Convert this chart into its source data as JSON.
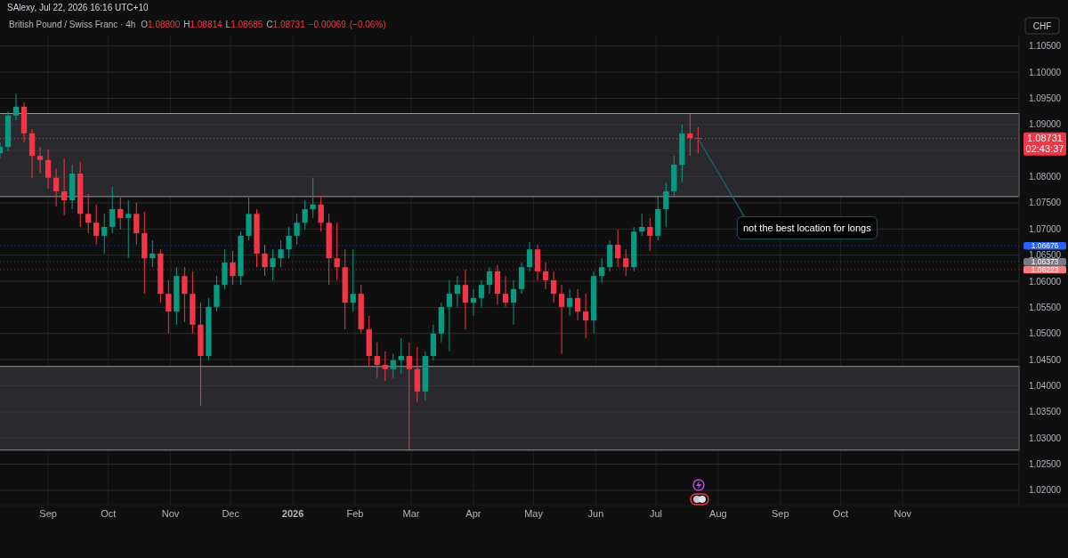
{
  "chart_data": {
    "type": "candlestick",
    "title": "British Pound / Swiss Franc · 4h",
    "subtitle": "O1.08800 H1.08814 L1.08685 C1.08731 −0.00069 (−0.06%)",
    "ylabel": "CHF",
    "annotations": [
      "SAlexy, Jul 22, 2026 16:16 UTC+10",
      "02:43:37",
      {
        "text": "not the best location for longs",
        "x": "2026-07-22",
        "y": 1.08731
      }
    ],
    "x": [
      "2025-08-08",
      "2025-08-12",
      "2025-08-16",
      "2025-08-20",
      "2025-08-24",
      "2025-08-28",
      "2025-09-01",
      "2025-09-05",
      "2025-09-09",
      "2025-09-13",
      "2025-09-17",
      "2025-09-21",
      "2025-09-25",
      "2025-09-29",
      "2025-10-03",
      "2025-10-07",
      "2025-10-11",
      "2025-10-15",
      "2025-10-19",
      "2025-10-23",
      "2025-10-27",
      "2025-10-31",
      "2025-11-04",
      "2025-11-08",
      "2025-11-12",
      "2025-11-16",
      "2025-11-20",
      "2025-11-24",
      "2025-11-28",
      "2025-12-02",
      "2025-12-06",
      "2025-12-10",
      "2025-12-14",
      "2025-12-18",
      "2025-12-22",
      "2025-12-26",
      "2025-12-30",
      "2026-01-03",
      "2026-01-07",
      "2026-01-11",
      "2026-01-15",
      "2026-01-19",
      "2026-01-23",
      "2026-01-27",
      "2026-01-31",
      "2026-02-04",
      "2026-02-08",
      "2026-02-12",
      "2026-02-16",
      "2026-02-20",
      "2026-02-24",
      "2026-02-28",
      "2026-03-04",
      "2026-03-08",
      "2026-03-12",
      "2026-03-16",
      "2026-03-20",
      "2026-03-24",
      "2026-03-28",
      "2026-04-01",
      "2026-04-05",
      "2026-04-09",
      "2026-04-13",
      "2026-04-17",
      "2026-04-21",
      "2026-04-25",
      "2026-04-29",
      "2026-05-03",
      "2026-05-07",
      "2026-05-11",
      "2026-05-15",
      "2026-05-19",
      "2026-05-23",
      "2026-05-27",
      "2026-05-31",
      "2026-06-04",
      "2026-06-08",
      "2026-06-12",
      "2026-06-16",
      "2026-06-20",
      "2026-06-24",
      "2026-06-28",
      "2026-07-02",
      "2026-07-06",
      "2026-07-10",
      "2026-07-14",
      "2026-07-18",
      "2026-07-22"
    ],
    "ohlc": [
      [
        1.0845,
        1.0866,
        1.0835,
        1.0857
      ],
      [
        1.0857,
        1.0925,
        1.0849,
        1.0917
      ],
      [
        1.0917,
        1.0959,
        1.0908,
        1.0934
      ],
      [
        1.0934,
        1.0942,
        1.0866,
        1.0883
      ],
      [
        1.0883,
        1.0891,
        1.0798,
        1.084
      ],
      [
        1.084,
        1.0857,
        1.0806,
        1.0832
      ],
      [
        1.0832,
        1.0852,
        1.0777,
        1.0798
      ],
      [
        1.0798,
        1.0815,
        1.0743,
        1.0772
      ],
      [
        1.0772,
        1.0835,
        1.0726,
        1.0755
      ],
      [
        1.0755,
        1.0823,
        1.0738,
        1.0806
      ],
      [
        1.0806,
        1.0828,
        1.0704,
        1.0729
      ],
      [
        1.0729,
        1.0767,
        1.0692,
        1.0712
      ],
      [
        1.0712,
        1.0747,
        1.067,
        1.0687
      ],
      [
        1.0687,
        1.0729,
        1.0653,
        1.0704
      ],
      [
        1.0704,
        1.0781,
        1.0692,
        1.0738
      ],
      [
        1.0738,
        1.076,
        1.0699,
        1.0721
      ],
      [
        1.0721,
        1.0755,
        1.0644,
        1.0729
      ],
      [
        1.0729,
        1.075,
        1.067,
        1.0692
      ],
      [
        1.0692,
        1.0733,
        1.0576,
        1.0644
      ],
      [
        1.0644,
        1.0678,
        1.0627,
        1.0653
      ],
      [
        1.0653,
        1.0661,
        1.0559,
        1.0576
      ],
      [
        1.0576,
        1.0602,
        1.05,
        1.0542
      ],
      [
        1.0542,
        1.0627,
        1.0517,
        1.061
      ],
      [
        1.061,
        1.0627,
        1.0522,
        1.0576
      ],
      [
        1.0576,
        1.0619,
        1.05,
        1.0517
      ],
      [
        1.0517,
        1.0559,
        1.0362,
        1.0457
      ],
      [
        1.0457,
        1.0568,
        1.0449,
        1.0551
      ],
      [
        1.0551,
        1.061,
        1.0542,
        1.0593
      ],
      [
        1.0593,
        1.0661,
        1.0585,
        1.0636
      ],
      [
        1.0636,
        1.0658,
        1.0593,
        1.061
      ],
      [
        1.061,
        1.0695,
        1.0593,
        1.0687
      ],
      [
        1.0687,
        1.076,
        1.0678,
        1.0729
      ],
      [
        1.0729,
        1.0738,
        1.0627,
        1.0653
      ],
      [
        1.0653,
        1.067,
        1.061,
        1.0627
      ],
      [
        1.0627,
        1.0661,
        1.0602,
        1.0644
      ],
      [
        1.0644,
        1.0678,
        1.0627,
        1.0661
      ],
      [
        1.0661,
        1.0704,
        1.0644,
        1.0687
      ],
      [
        1.0687,
        1.0729,
        1.067,
        1.0712
      ],
      [
        1.0712,
        1.0755,
        1.0699,
        1.0738
      ],
      [
        1.0738,
        1.0798,
        1.0721,
        1.0747
      ],
      [
        1.0747,
        1.0764,
        1.0695,
        1.0712
      ],
      [
        1.0712,
        1.0729,
        1.0593,
        1.0644
      ],
      [
        1.0644,
        1.0712,
        1.0602,
        1.0627
      ],
      [
        1.0627,
        1.0661,
        1.0508,
        1.0559
      ],
      [
        1.0559,
        1.0661,
        1.0542,
        1.0576
      ],
      [
        1.0576,
        1.0593,
        1.05,
        1.0508
      ],
      [
        1.0508,
        1.0534,
        1.0437,
        1.0457
      ],
      [
        1.0457,
        1.0483,
        1.0415,
        1.044
      ],
      [
        1.044,
        1.0466,
        1.0409,
        1.0432
      ],
      [
        1.0432,
        1.0461,
        1.0415,
        1.0449
      ],
      [
        1.0449,
        1.0491,
        1.0423,
        1.0457
      ],
      [
        1.0457,
        1.0483,
        1.0277,
        1.0432
      ],
      [
        1.0432,
        1.0474,
        1.0369,
        1.0389
      ],
      [
        1.0389,
        1.0466,
        1.0372,
        1.0457
      ],
      [
        1.0457,
        1.0517,
        1.0449,
        1.05
      ],
      [
        1.05,
        1.0559,
        1.0483,
        1.0551
      ],
      [
        1.0551,
        1.0602,
        1.0466,
        1.0576
      ],
      [
        1.0576,
        1.061,
        1.0551,
        1.0593
      ],
      [
        1.0593,
        1.0622,
        1.0508,
        1.0559
      ],
      [
        1.0559,
        1.0585,
        1.0534,
        1.0568
      ],
      [
        1.0568,
        1.0602,
        1.0551,
        1.0593
      ],
      [
        1.0593,
        1.0627,
        1.0576,
        1.0619
      ],
      [
        1.0619,
        1.0631,
        1.0556,
        1.0576
      ],
      [
        1.0576,
        1.061,
        1.0551,
        1.0559
      ],
      [
        1.0559,
        1.0602,
        1.0517,
        1.0585
      ],
      [
        1.0585,
        1.0636,
        1.0576,
        1.0627
      ],
      [
        1.0627,
        1.0675,
        1.0619,
        1.0661
      ],
      [
        1.0661,
        1.067,
        1.0602,
        1.0619
      ],
      [
        1.0619,
        1.0636,
        1.0585,
        1.0602
      ],
      [
        1.0602,
        1.0619,
        1.0559,
        1.0576
      ],
      [
        1.0576,
        1.0593,
        1.0461,
        1.0551
      ],
      [
        1.0551,
        1.0585,
        1.0534,
        1.0568
      ],
      [
        1.0568,
        1.0585,
        1.0525,
        1.0542
      ],
      [
        1.0542,
        1.0576,
        1.0491,
        1.0525
      ],
      [
        1.0525,
        1.0619,
        1.05,
        1.061
      ],
      [
        1.061,
        1.0644,
        1.0597,
        1.0627
      ],
      [
        1.0627,
        1.0678,
        1.0619,
        1.067
      ],
      [
        1.067,
        1.0699,
        1.0627,
        1.0644
      ],
      [
        1.0644,
        1.0661,
        1.061,
        1.0627
      ],
      [
        1.0627,
        1.0704,
        1.0619,
        1.0695
      ],
      [
        1.0695,
        1.0729,
        1.0687,
        1.0704
      ],
      [
        1.0704,
        1.0721,
        1.0658,
        1.0687
      ],
      [
        1.0687,
        1.0764,
        1.0678,
        1.0738
      ],
      [
        1.0738,
        1.0789,
        1.0704,
        1.0772
      ],
      [
        1.0772,
        1.084,
        1.0764,
        1.0823
      ],
      [
        1.0823,
        1.09,
        1.0789,
        1.0883
      ],
      [
        1.0883,
        1.092,
        1.084,
        1.0874
      ],
      [
        1.0874,
        1.0895,
        1.0845,
        1.08731
      ]
    ],
    "xlim": [
      "2025-08-08",
      "2026-12-29"
    ],
    "xticks": [
      {
        "value": "2025-09-01",
        "label": "Sep"
      },
      {
        "value": "2025-10-01",
        "label": "Oct"
      },
      {
        "value": "2025-11-01",
        "label": "Nov"
      },
      {
        "value": "2025-12-01",
        "label": "Dec"
      },
      {
        "value": "2026-01-01",
        "label": "2026"
      },
      {
        "value": "2026-02-01",
        "label": "Feb"
      },
      {
        "value": "2026-03-01",
        "label": "Mar"
      },
      {
        "value": "2026-04-01",
        "label": "Apr"
      },
      {
        "value": "2026-05-01",
        "label": "May"
      },
      {
        "value": "2026-06-01",
        "label": "Jun"
      },
      {
        "value": "2026-07-01",
        "label": "Jul"
      },
      {
        "value": "2026-08-01",
        "label": "Aug"
      },
      {
        "value": "2026-09-01",
        "label": "Sep"
      },
      {
        "value": "2026-10-01",
        "label": "Oct"
      },
      {
        "value": "2026-11-01",
        "label": "Nov"
      }
    ],
    "ylim": [
      1.0171,
      1.107
    ],
    "yticks": [
      {
        "value": 1.02,
        "label": "1.02000"
      },
      {
        "value": 1.025,
        "label": "1.02500"
      },
      {
        "value": 1.03,
        "label": "1.03000"
      },
      {
        "value": 1.035,
        "label": "1.03500"
      },
      {
        "value": 1.04,
        "label": "1.04000"
      },
      {
        "value": 1.045,
        "label": "1.04500"
      },
      {
        "value": 1.05,
        "label": "1.05000"
      },
      {
        "value": 1.055,
        "label": "1.05500"
      },
      {
        "value": 1.06,
        "label": "1.06000"
      },
      {
        "value": 1.065,
        "label": "1.06500"
      },
      {
        "value": 1.07,
        "label": "1.07000"
      },
      {
        "value": 1.075,
        "label": "1.07500"
      },
      {
        "value": 1.08,
        "label": "1.08000"
      },
      {
        "value": 1.085,
        "label": null
      },
      {
        "value": 1.09,
        "label": "1.09000"
      },
      {
        "value": 1.095,
        "label": "1.09500"
      },
      {
        "value": 1.1,
        "label": "1.10000"
      },
      {
        "value": 1.105,
        "label": "1.10500"
      }
    ],
    "grid": true,
    "bands": [
      {
        "axis": "y",
        "from": 1.0762,
        "to": 1.0921,
        "color": "#2a2a2e"
      },
      {
        "axis": "y",
        "from": 1.0277,
        "to": 1.0437,
        "color": "#2a2a2e"
      }
    ],
    "ref_lines": [
      {
        "axis": "y",
        "value": 1.08731,
        "label": "1.08731",
        "color": "#f23645",
        "line_style": "dotted"
      },
      {
        "axis": "y",
        "value": 1.06676,
        "label": "1.06676",
        "color": "#2962ff",
        "line_style": "dotted"
      },
      {
        "axis": "y",
        "value": 1.06373,
        "label": "1.06373",
        "color": "#787b86",
        "line_style": "dotted"
      },
      {
        "axis": "y",
        "value": 1.06223,
        "label": "1.06223",
        "color": "#f77c80",
        "line_style": "dotted"
      }
    ]
  }
}
